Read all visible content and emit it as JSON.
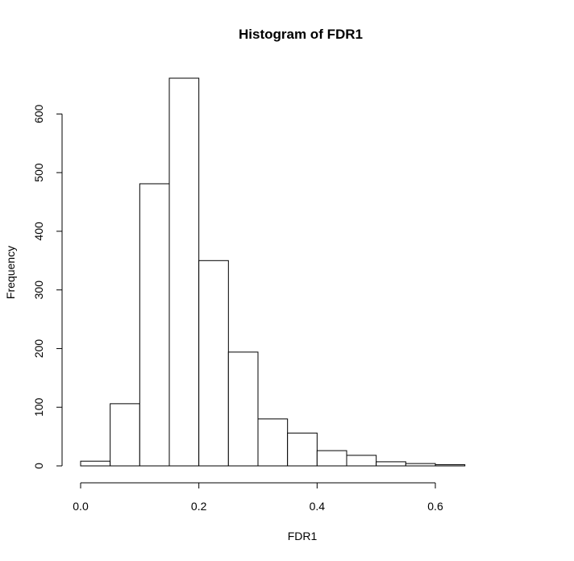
{
  "chart_data": {
    "type": "bar",
    "title": "Histogram of FDR1",
    "xlabel": "FDR1",
    "ylabel": "Frequency",
    "bin_edges": [
      0.0,
      0.05,
      0.1,
      0.15,
      0.2,
      0.25,
      0.3,
      0.35,
      0.4,
      0.45,
      0.5,
      0.55,
      0.6,
      0.65,
      0.7,
      0.75
    ],
    "values": [
      8,
      106,
      481,
      661,
      350,
      194,
      80,
      56,
      26,
      18,
      7,
      4,
      2,
      0,
      0
    ],
    "xlim": [
      0.0,
      0.75
    ],
    "ylim": [
      0,
      661
    ],
    "x_ticks": [
      0.0,
      0.2,
      0.4,
      0.6
    ],
    "x_tick_labels": [
      "0.0",
      "0.2",
      "0.4",
      "0.6"
    ],
    "y_ticks": [
      0,
      100,
      200,
      300,
      400,
      500,
      600
    ],
    "y_tick_labels": [
      "0",
      "100",
      "200",
      "300",
      "400",
      "500",
      "600"
    ],
    "grid": false,
    "bar_fill": "#ffffff",
    "bar_stroke": "#000000"
  }
}
